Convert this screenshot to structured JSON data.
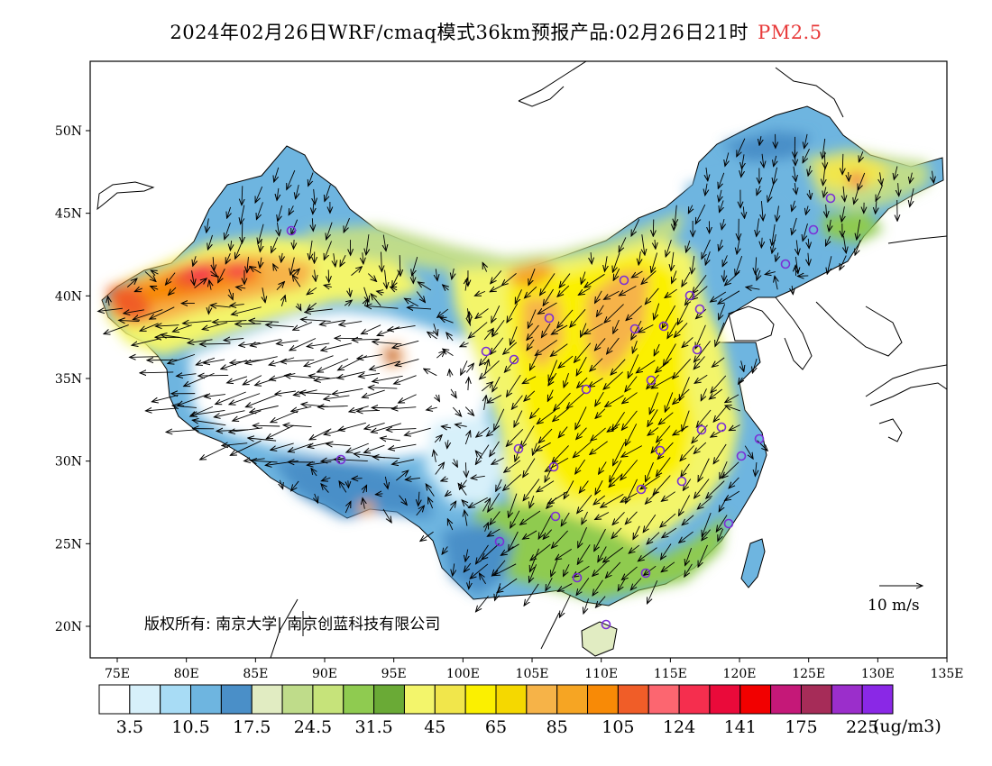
{
  "title": {
    "main": "2024年02月26日WRF/cmaq模式36km预报产品:02月26日21时",
    "pollutant": "PM2.5"
  },
  "axes": {
    "lon_ticks": [
      "75E",
      "80E",
      "85E",
      "90E",
      "95E",
      "100E",
      "105E",
      "110E",
      "115E",
      "120E",
      "125E",
      "130E",
      "135E"
    ],
    "lat_ticks": [
      "20N",
      "25N",
      "30N",
      "35N",
      "40N",
      "45N",
      "50N"
    ]
  },
  "colorbar": {
    "colors": [
      "#ffffff",
      "#d7f0fa",
      "#a8dcf5",
      "#6eb5e0",
      "#4a8fc8",
      "#e1ecc2",
      "#bfdc8a",
      "#c6e37a",
      "#8fcb50",
      "#6aaa36",
      "#f3f56b",
      "#f1e64b",
      "#fbf000",
      "#f5d800",
      "#f6b348",
      "#f6a523",
      "#f88a06",
      "#f05d28",
      "#fc6670",
      "#f52e4e",
      "#ea0a3a",
      "#f20000",
      "#c51878",
      "#a62c58",
      "#9b2ecb",
      "#8a28e6"
    ],
    "labels": [
      "3.5",
      "10.5",
      "17.5",
      "24.5",
      "31.5",
      "45",
      "65",
      "85",
      "105",
      "124",
      "141",
      "175",
      "225"
    ],
    "unit": "(ug/m3)"
  },
  "wind_legend": {
    "label": "10 m/s"
  },
  "copyright": "版权所有: 南京大学| 南京创蓝科技有限公司"
}
